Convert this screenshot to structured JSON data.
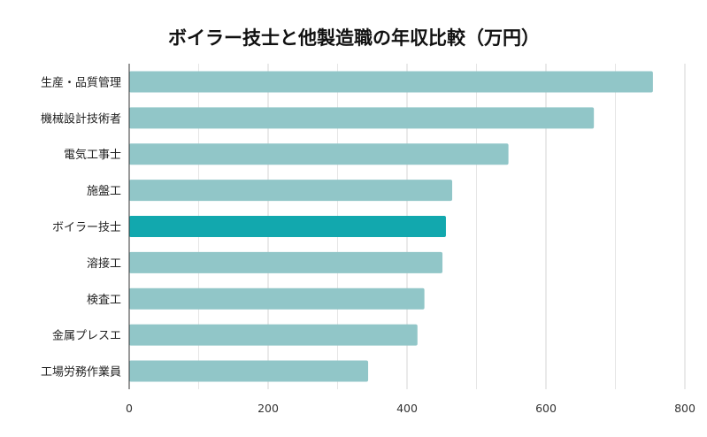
{
  "chart_data": {
    "type": "bar",
    "orientation": "horizontal",
    "title": "ボイラー技士と他製造職の年収比較（万円）",
    "xlabel": "",
    "ylabel": "",
    "categories": [
      "生産・品質管理",
      "機械設計技術者",
      "電気工事士",
      "施盤工",
      "ボイラー技士",
      "溶接工",
      "検査工",
      "金属プレスエ",
      "工場労務作業員"
    ],
    "values": [
      754,
      669,
      546,
      465,
      456,
      451,
      425,
      415,
      344
    ],
    "highlight": "ボイラー技士",
    "xlim": [
      0,
      800
    ],
    "xticks": [
      "0",
      "200",
      "400",
      "600",
      "800"
    ],
    "grid": true,
    "legend": "none",
    "colors": {
      "bar": "#91c6c8",
      "highlight": "#12a8ae",
      "grid": "#dddddd",
      "axis": "#333333"
    }
  }
}
